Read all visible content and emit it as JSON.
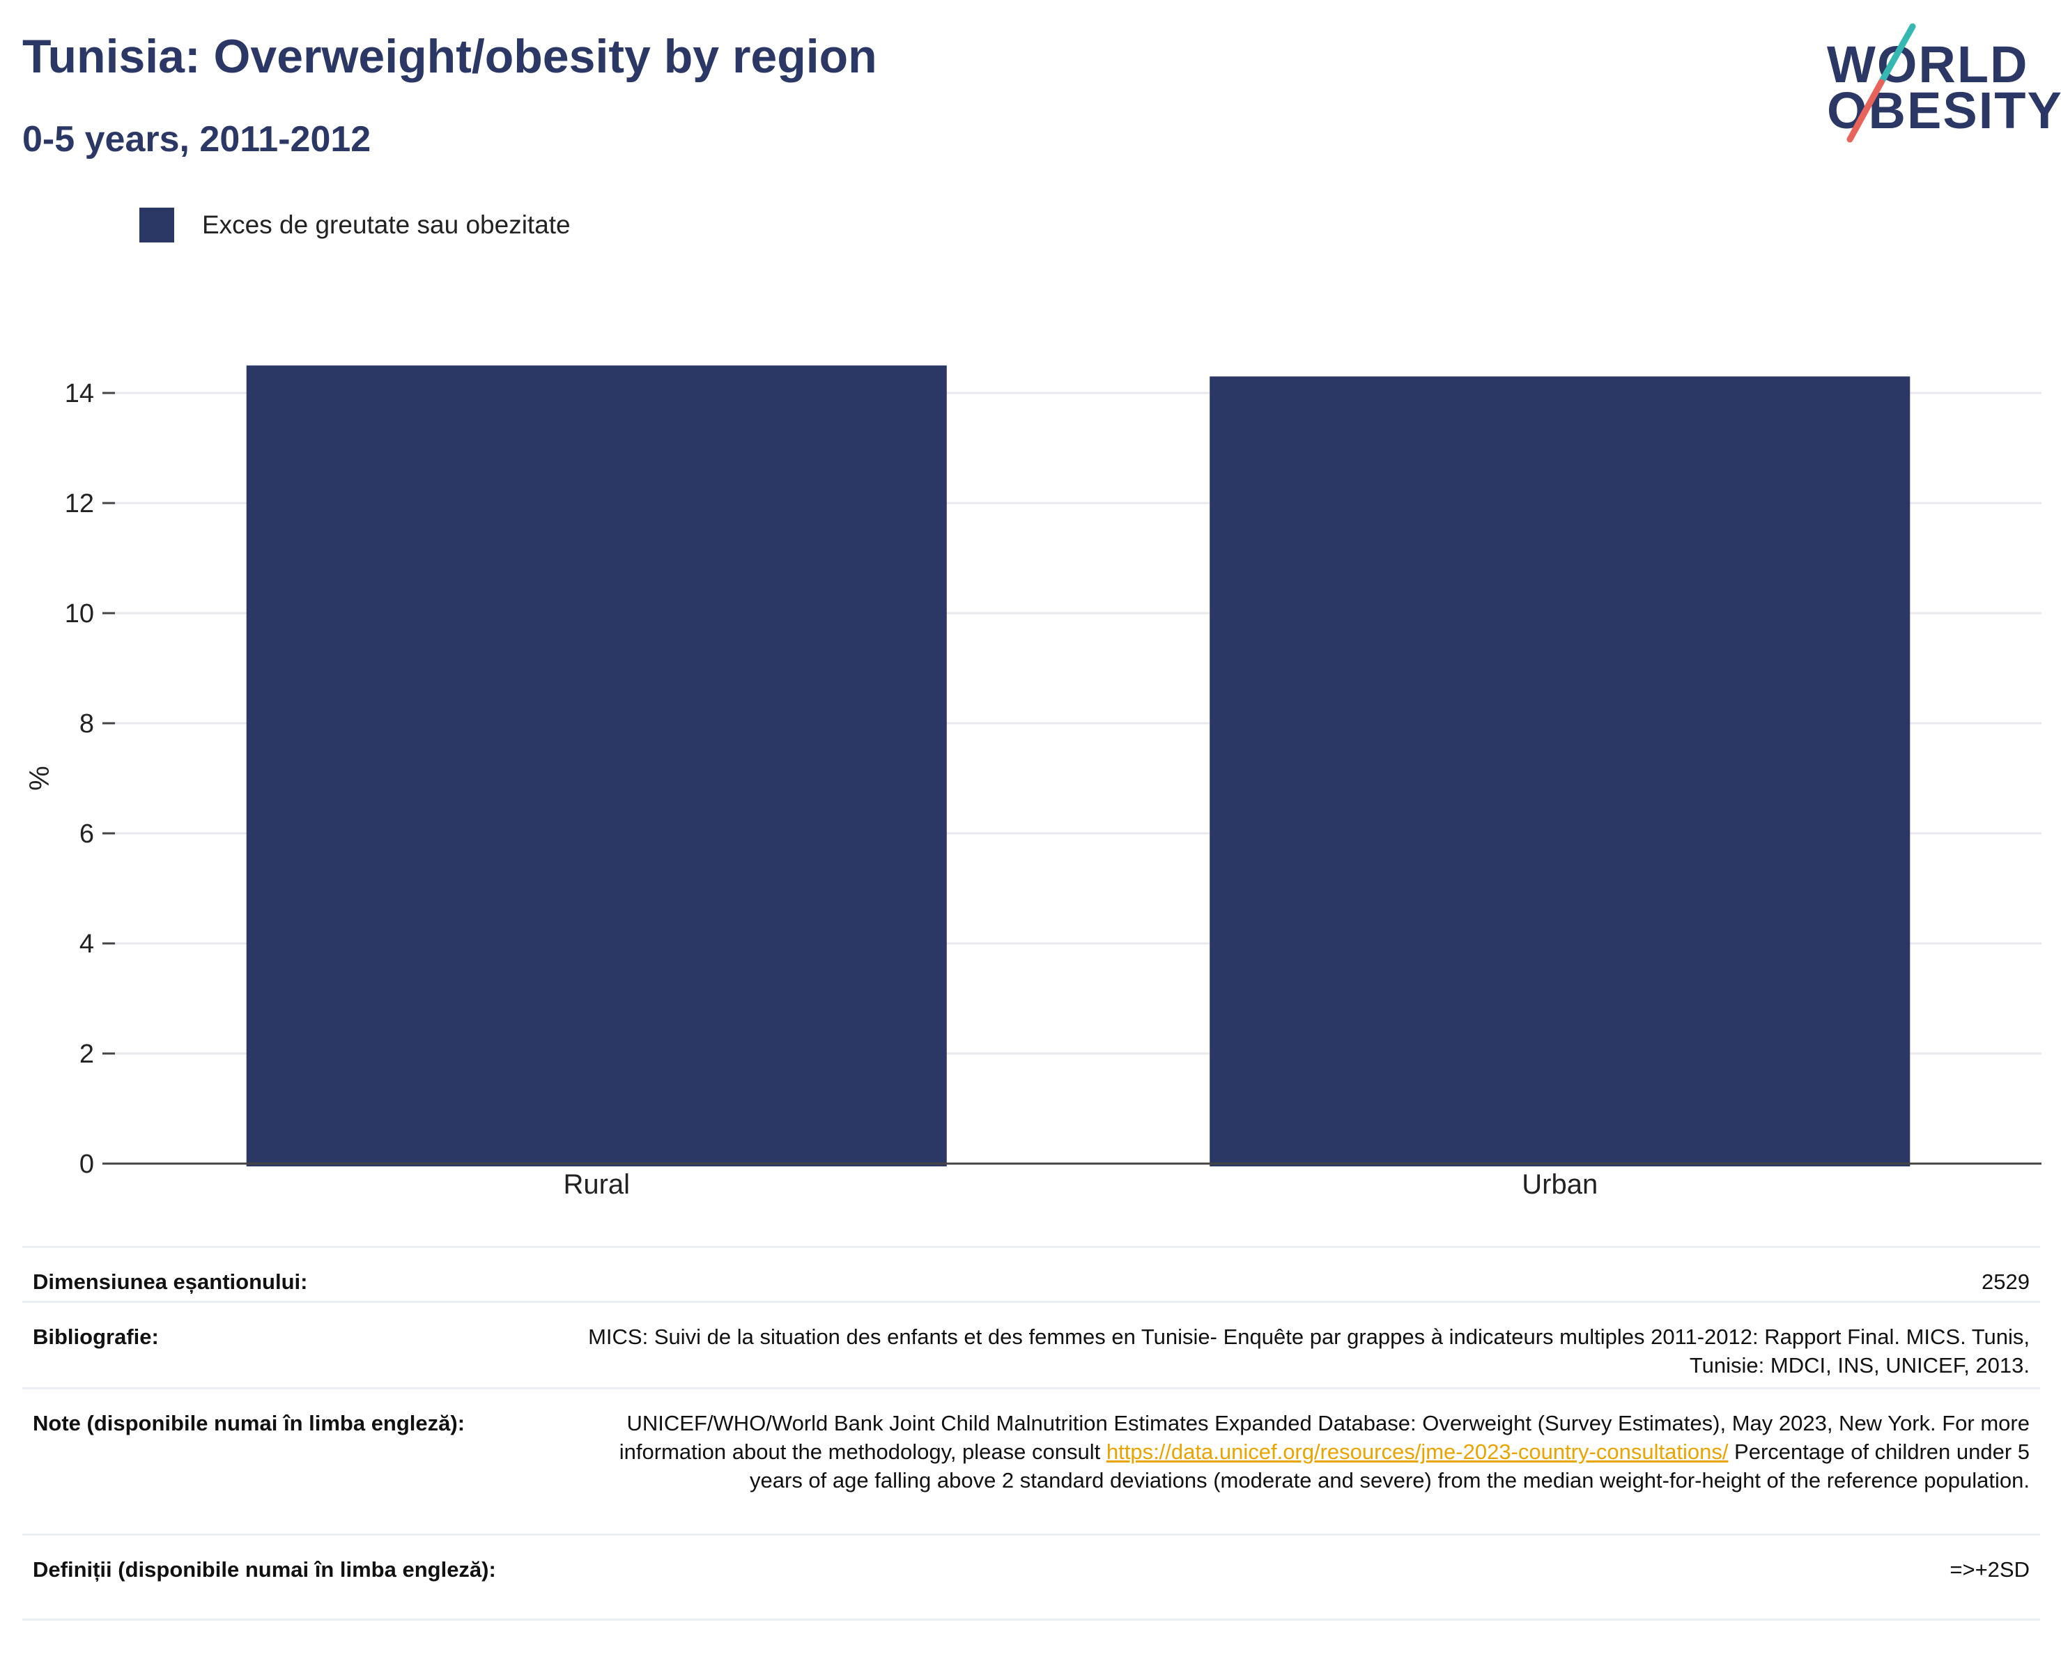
{
  "header": {
    "title": "Tunisia: Overweight/obesity by region",
    "subtitle": "0-5 years, 2011-2012"
  },
  "logo": {
    "line1": "WORLD",
    "line2": "OBESITY",
    "colors": {
      "text": "#2b3764",
      "slash_top": "#35b8b1",
      "slash_bottom": "#e8635a"
    }
  },
  "chart_data": {
    "type": "bar",
    "categories": [
      "Rural",
      "Urban"
    ],
    "series": [
      {
        "name": "Exces de greutate sau obezitate",
        "values": [
          14.5,
          14.3
        ],
        "color": "#2b3764"
      }
    ],
    "ylabel": "%",
    "xlabel": "",
    "ylim": [
      0,
      14.5
    ],
    "yticks": [
      0,
      2,
      4,
      6,
      8,
      10,
      12,
      14
    ],
    "grid": true,
    "legend_position": "top-left"
  },
  "info": {
    "sample_size": {
      "label": "Dimensiunea eșantionului:",
      "value": "2529"
    },
    "bibliography": {
      "label": "Bibliografie:",
      "value": "MICS: Suivi de la situation des enfants et des femmes en Tunisie- Enquête par grappes à indicateurs multiples 2011-2012: Rapport Final. MICS. Tunis, Tunisie: MDCI, INS, UNICEF, 2013."
    },
    "notes": {
      "label": "Note (disponibile numai în limba engleză):",
      "value_before": "UNICEF/WHO/World Bank Joint Child Malnutrition Estimates Expanded Database: Overweight (Survey Estimates), May 2023, New York. For more information about the methodology, please consult ",
      "link": "https://data.unicef.org/resources/jme-2023-country-consultations/",
      "value_after": " Percentage of children under 5 years of age falling above 2 standard deviations (moderate and severe) from the median weight-for-height of the reference population."
    },
    "definitions": {
      "label": "Definiții (disponibile numai în limba engleză):",
      "value": "=>+2SD"
    }
  }
}
